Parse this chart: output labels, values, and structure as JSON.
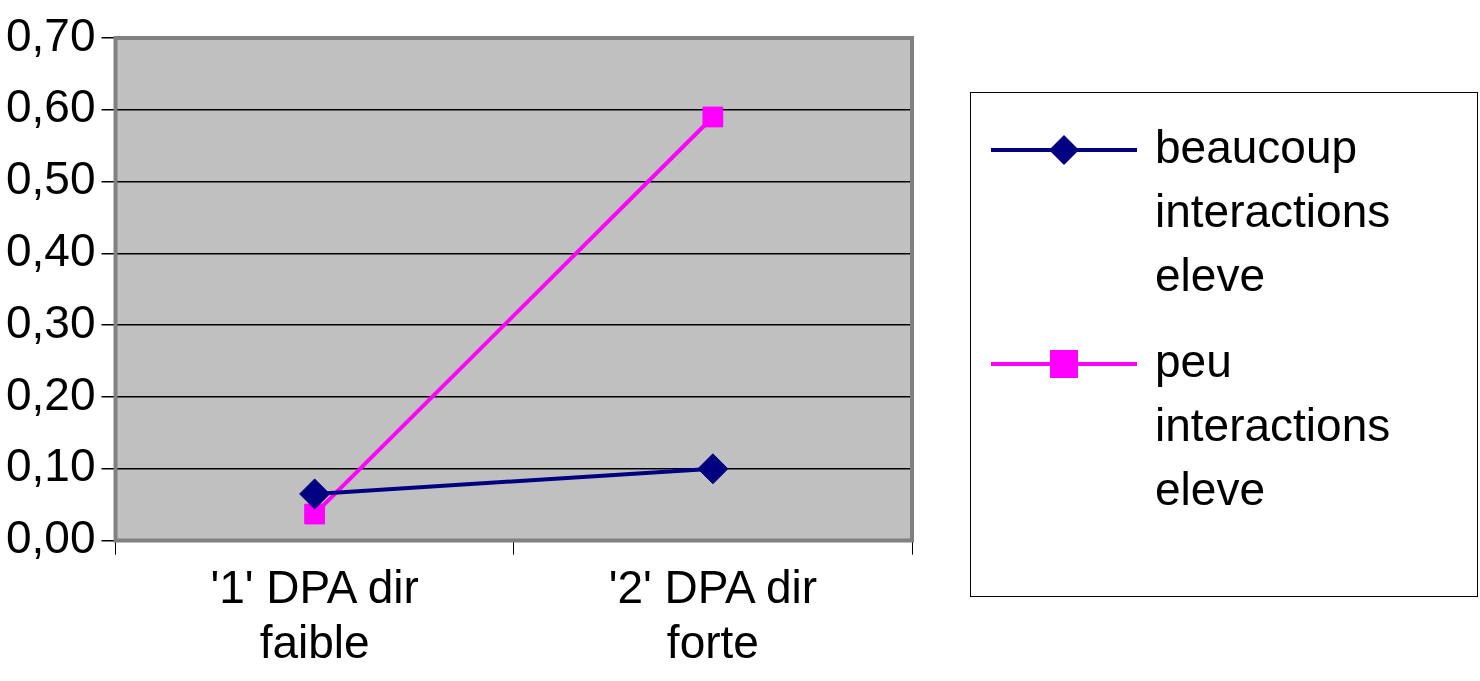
{
  "chart_data": {
    "type": "line",
    "categories": [
      "'1' DPA dir faible",
      "'2' DPA dir forte"
    ],
    "series": [
      {
        "name": "beaucoup interactions eleve",
        "color": "#000080",
        "marker": "diamond",
        "values": [
          0.065,
          0.1
        ]
      },
      {
        "name": "peu interactions eleve",
        "color": "#ff00ff",
        "marker": "square",
        "values": [
          0.037,
          0.59
        ]
      }
    ],
    "ylim": [
      0,
      0.7
    ],
    "yticks": [
      {
        "value": 0,
        "label": "0,00"
      },
      {
        "value": 0.1,
        "label": "0,10"
      },
      {
        "value": 0.2,
        "label": "0,20"
      },
      {
        "value": 0.3,
        "label": "0,30"
      },
      {
        "value": 0.4,
        "label": "0,40"
      },
      {
        "value": 0.5,
        "label": "0,50"
      },
      {
        "value": 0.6,
        "label": "0,60"
      },
      {
        "value": 0.7,
        "label": "0,70"
      }
    ],
    "grid": "y",
    "legend": "right",
    "line_style": "solid"
  }
}
